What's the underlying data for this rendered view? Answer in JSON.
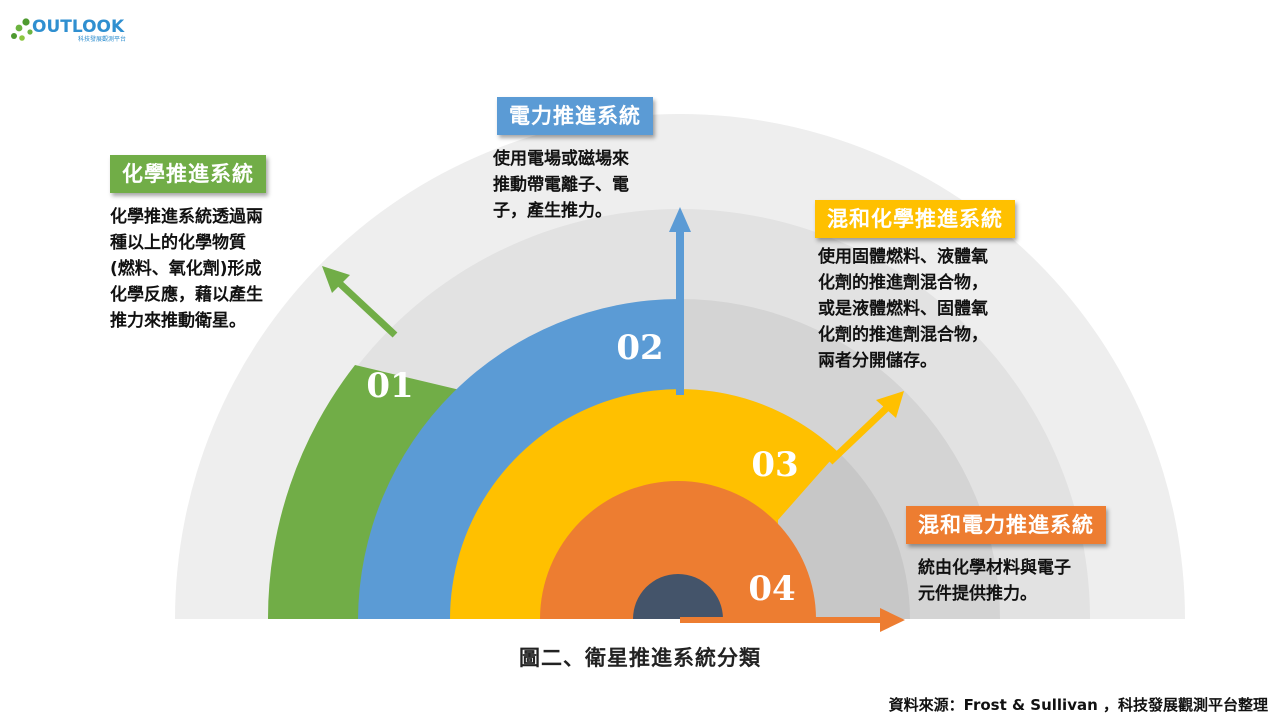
{
  "logo": {
    "text": "OUTLOOK",
    "subtitle": "科技發展觀測平台",
    "dot_color": "#4e9a2f",
    "text_color": "#2f8fd0"
  },
  "categories": [
    {
      "number": "01",
      "title": "化學推進系統",
      "color": "#71ad47",
      "description": [
        "化學推進系統透過兩",
        "種以上的化學物質",
        "(燃料、氧化劑)形成",
        "化學反應，藉以產生",
        "推力來推動衛星。"
      ]
    },
    {
      "number": "02",
      "title": "電力推進系統",
      "color": "#5b9bd5",
      "description": [
        "使用電場或磁場來",
        "推動帶電離子、電",
        "子，產生推力。"
      ]
    },
    {
      "number": "03",
      "title": "混和化學推進系統",
      "color": "#ffc000",
      "description": [
        "使用固體燃料、液體氧",
        "化劑的推進劑混合物，",
        "或是液體燃料、固體氧",
        "化劑的推進劑混合物，",
        "兩者分開儲存。"
      ]
    },
    {
      "number": "04",
      "title": "混和電力推進系統",
      "color": "#ed7d31",
      "description": [
        "統由化學材料與電子",
        "元件提供推力。"
      ]
    }
  ],
  "center_color": "#44546a",
  "background_ring_colors": [
    "#eeeeee",
    "#e2e2e2",
    "#d4d4d4",
    "#c7c7c7"
  ],
  "caption": "圖二、衛星推進系統分類",
  "source": "資料來源：Frost & Sullivan ，科技發展觀測平台整理"
}
